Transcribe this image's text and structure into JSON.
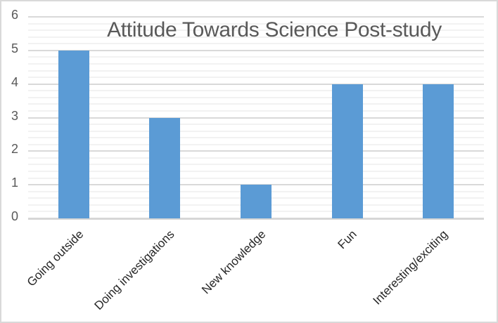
{
  "chart_data": {
    "type": "bar",
    "title": "Attitude Towards Science Post-study",
    "categories": [
      "Going outside",
      "Doing investigations",
      "New knowledge",
      "Fun",
      "Interesting/exciting"
    ],
    "values": [
      5,
      3,
      1,
      4,
      4
    ],
    "xlabel": "",
    "ylabel": "",
    "ylim": [
      0,
      6
    ],
    "yticks": [
      0,
      1,
      2,
      3,
      4,
      5,
      6
    ],
    "minor_step": 0.2,
    "grid": "major and minor horizontal gridlines",
    "legend_position": "none",
    "colors": {
      "bar": "#5b9bd5",
      "major_gridline": "#d9d9d9",
      "minor_gridline": "#f2f2f2",
      "axis_line": "#d6d6d6",
      "title_text": "#595959",
      "ytick_text": "#595959",
      "xtick_text": "#262626",
      "chart_border": "#d9d9d9",
      "background": "#ffffff"
    }
  }
}
